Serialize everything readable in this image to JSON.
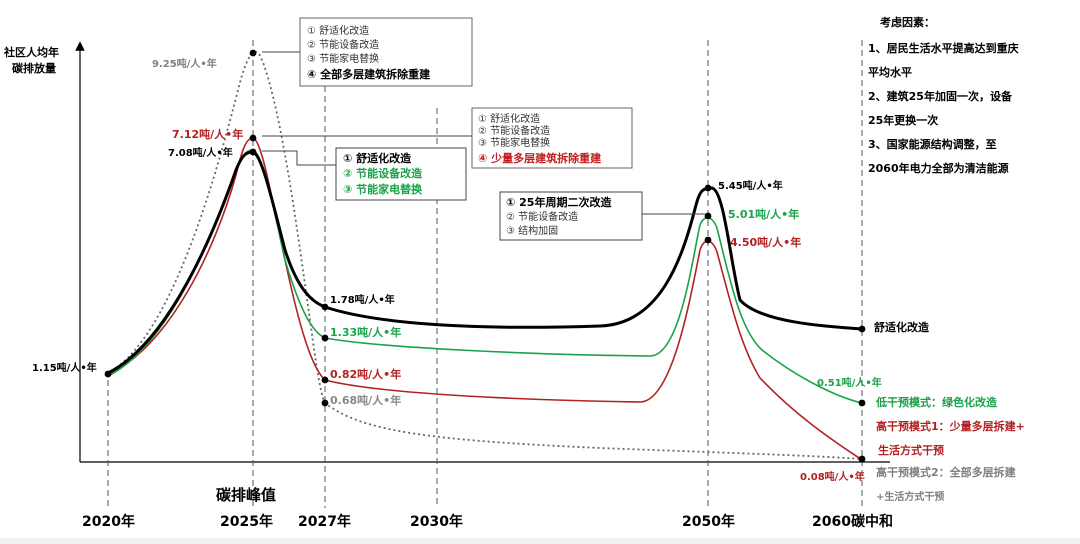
{
  "chart_data": {
    "type": "line",
    "ylabel": [
      "社区人均年",
      "碳排放量"
    ],
    "x_ticks": [
      "2020年",
      "2025年",
      "2027年",
      "2030年",
      "2050年",
      "2060碳中和"
    ],
    "x_sublabel": "碳排峰值",
    "series": [
      {
        "name": "舒适化改造",
        "color": "#000000",
        "points": [
          {
            "x": 2020,
            "y": 1.15,
            "label": "1.15吨/人•年"
          },
          {
            "x": 2025,
            "y": 7.08,
            "label": "7.08吨/人•年"
          },
          {
            "x": 2027,
            "y": 1.78,
            "label": "1.78吨/人•年"
          },
          {
            "x": 2050,
            "y": 5.45,
            "label": "5.45吨/人•年"
          },
          {
            "x": 2060,
            "y": 1.45,
            "label": ""
          }
        ]
      },
      {
        "name": "低干预模式：绿色化改造",
        "color": "#1aa34a",
        "points": [
          {
            "x": 2020,
            "y": 1.15,
            "label": ""
          },
          {
            "x": 2025,
            "y": 7.08,
            "label": ""
          },
          {
            "x": 2027,
            "y": 1.33,
            "label": "1.33吨/人•年"
          },
          {
            "x": 2050,
            "y": 5.01,
            "label": "5.01吨/人•年"
          },
          {
            "x": 2060,
            "y": 0.51,
            "label": "0.51吨/人•年"
          }
        ]
      },
      {
        "name": "高干预模式1：少量多层拆建+生活方式干预",
        "color": "#b22222",
        "points": [
          {
            "x": 2020,
            "y": 1.15,
            "label": ""
          },
          {
            "x": 2025,
            "y": 7.12,
            "label": "7.12吨/人•年"
          },
          {
            "x": 2027,
            "y": 0.82,
            "label": "0.82吨/人•年"
          },
          {
            "x": 2050,
            "y": 4.5,
            "label": "4.50吨/人•年"
          },
          {
            "x": 2060,
            "y": 0.08,
            "label": "0.08吨/人•年"
          }
        ]
      },
      {
        "name": "高干预模式2：全部多层拆建+生活方式干预",
        "color": "#777777",
        "points": [
          {
            "x": 2020,
            "y": 1.15,
            "label": ""
          },
          {
            "x": 2025,
            "y": 9.25,
            "label": "9.25吨/人•年"
          },
          {
            "x": 2027,
            "y": 0.68,
            "label": "0.68吨/人•年"
          },
          {
            "x": 2060,
            "y": 0.08,
            "label": ""
          }
        ]
      }
    ],
    "end_labels": {
      "black": "舒适化改造",
      "green": "低干预模式：绿色化改造",
      "red": [
        "高干预模式1：少量多层拆建+",
        "生活方式干预"
      ],
      "gray": [
        "高干预模式2：全部多层拆建",
        "+生活方式干预"
      ]
    },
    "annotation_boxes": [
      {
        "items": [
          "① 舒适化改造",
          "② 节能设备改造",
          "③ 节能家电替换",
          "④ 全部多层建筑拆除重建"
        ]
      },
      {
        "items": [
          "① 舒适化改造",
          "② 节能设备改造",
          "③ 节能家电替换"
        ]
      },
      {
        "items": [
          "① 舒适化改造",
          "② 节能设备改造",
          "③ 节能家电替换",
          "④ 少量多层建筑拆除重建"
        ]
      },
      {
        "items": [
          "① 25年周期二次改造",
          "② 节能设备改造",
          "③ 结构加固"
        ]
      }
    ],
    "considerations": {
      "title": "考虑因素：",
      "lines": [
        "1、居民生活水平提高达到重庆",
        "平均水平",
        "2、建筑25年加固一次，设备",
        "25年更换一次",
        "3、国家能源结构调整，至",
        "2060年电力全部为清洁能源"
      ]
    },
    "grid": false,
    "legend": "none"
  }
}
